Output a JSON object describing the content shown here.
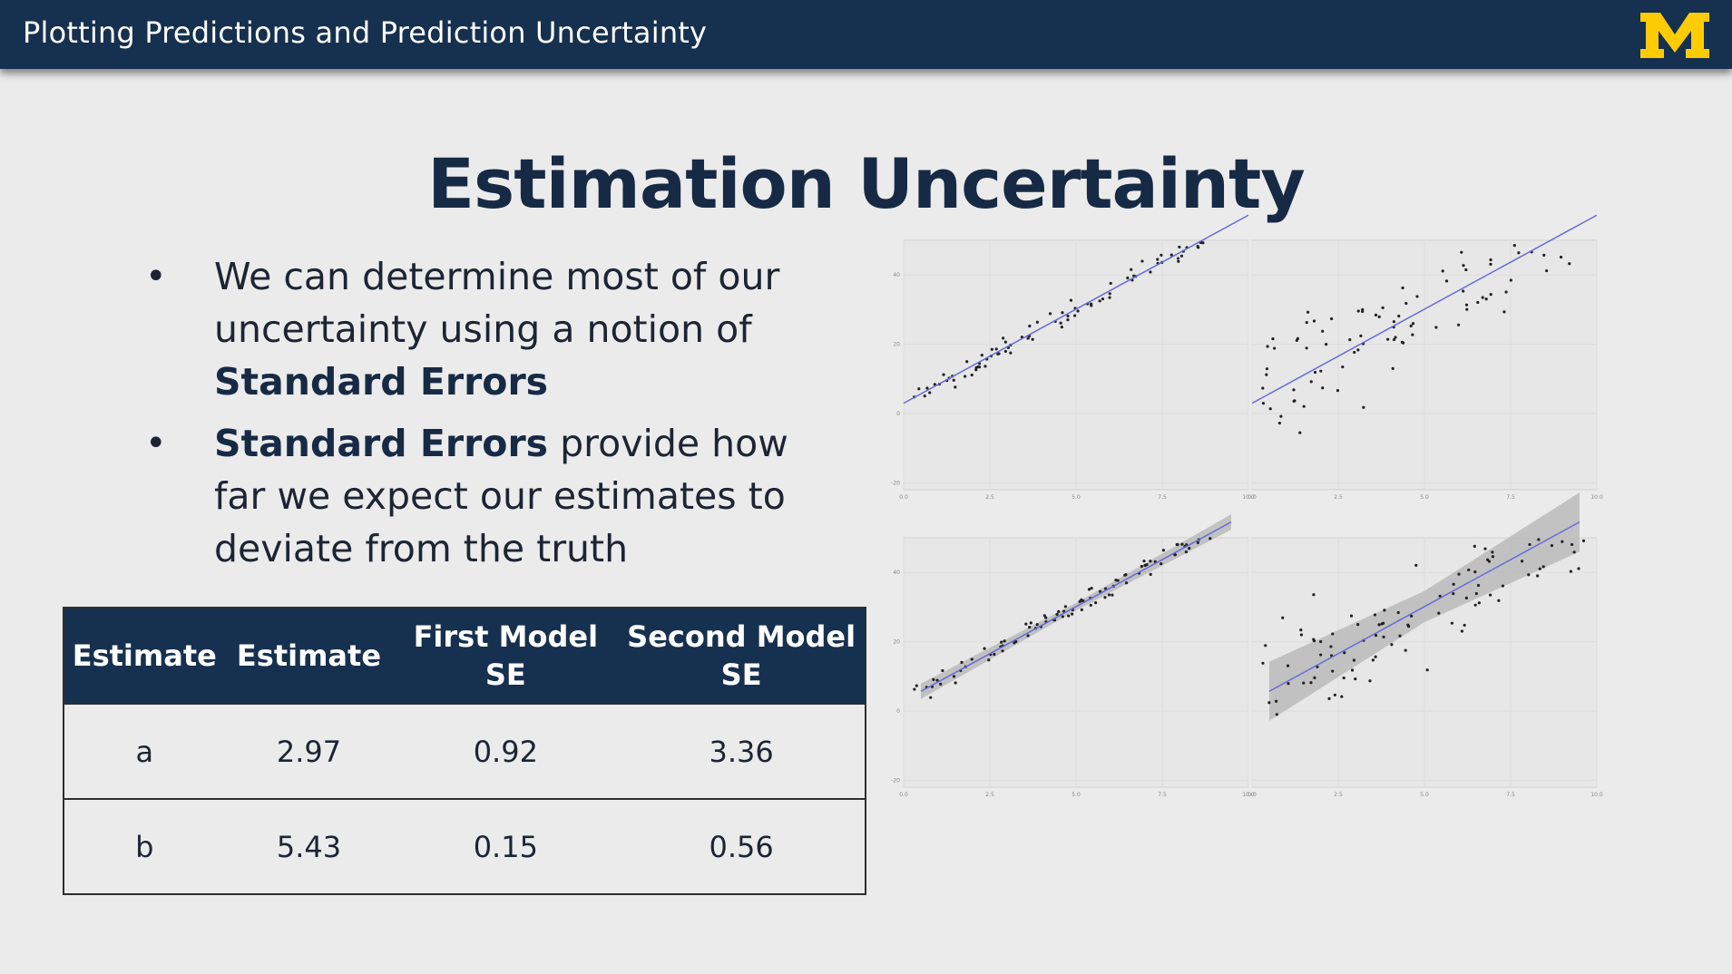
{
  "header": {
    "title": "Plotting Predictions and Prediction Uncertainty",
    "logo_text": "M",
    "logo_color": "#ffcb05",
    "bar_color": "#16304f"
  },
  "slide": {
    "title": "Estimation Uncertainty",
    "bullets": [
      {
        "pre": "We can determine most of our uncertainty using a notion of ",
        "bold": "Standard Errors",
        "post": ""
      },
      {
        "pre": "",
        "bold": "Standard Errors",
        "post": " provide how far we expect our estimates to deviate from the truth"
      }
    ],
    "bullet_symbol": "•"
  },
  "table": {
    "headers": [
      "Estimate",
      "Estimate",
      "First Model SE",
      "Second Model SE"
    ],
    "rows": [
      [
        "a",
        "2.97",
        "0.92",
        "3.36"
      ],
      [
        "b",
        "5.43",
        "0.15",
        "0.56"
      ]
    ]
  },
  "chart_data": [
    {
      "type": "scatter",
      "panel": "top-left",
      "xlim": [
        0,
        10
      ],
      "ylim": [
        -22,
        50
      ],
      "x_ticks": [
        "0.0",
        "2.5",
        "5.0",
        "7.5",
        "10.0"
      ],
      "y_ticks": [
        "-20",
        "0",
        "20",
        "40"
      ],
      "fit_line": {
        "intercept": 2.97,
        "slope": 5.43
      },
      "line_color": "#6a6ad8",
      "band": false
    },
    {
      "type": "scatter",
      "panel": "top-right",
      "xlim": [
        0,
        10
      ],
      "ylim": [
        -22,
        50
      ],
      "x_ticks": [
        "0.0",
        "2.5",
        "5.0",
        "7.5",
        "10.0"
      ],
      "y_ticks": [],
      "fit_line": {
        "intercept": 2.97,
        "slope": 5.43
      },
      "line_color": "#6a6ad8",
      "band": false
    },
    {
      "type": "scatter",
      "panel": "bottom-left",
      "xlim": [
        0,
        10
      ],
      "ylim": [
        -22,
        50
      ],
      "x_ticks": [
        "0.0",
        "2.5",
        "5.0",
        "7.5",
        "10.0"
      ],
      "y_ticks": [
        "-20",
        "0",
        "20",
        "40"
      ],
      "fit_line": {
        "intercept": 2.97,
        "slope": 5.43
      },
      "line_color": "#6a6ad8",
      "band": true
    },
    {
      "type": "scatter",
      "panel": "bottom-right",
      "xlim": [
        0,
        10
      ],
      "ylim": [
        -22,
        50
      ],
      "x_ticks": [
        "0.0",
        "2.5",
        "5.0",
        "7.5",
        "10.0"
      ],
      "y_ticks": [],
      "fit_line": {
        "intercept": 2.97,
        "slope": 5.43
      },
      "line_color": "#6a6ad8",
      "band": true
    }
  ]
}
